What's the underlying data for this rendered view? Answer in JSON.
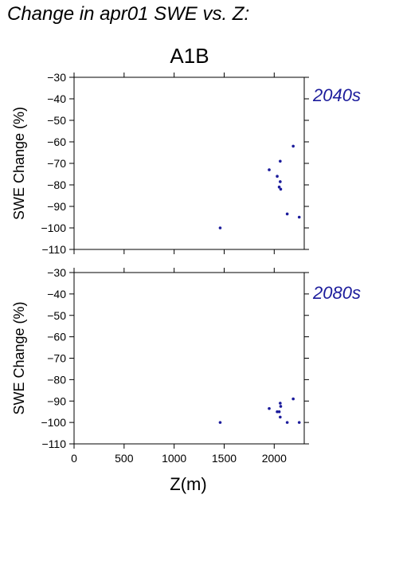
{
  "title": "Change in apr01 SWE vs. Z:",
  "scenario": "A1B",
  "colors": {
    "points": "#1c1c9c",
    "label": "#1c1c9c",
    "axis": "#000000"
  },
  "chart_data": [
    {
      "type": "scatter",
      "panel_label": "2040s",
      "xlabel": "Z(m)",
      "ylabel": "SWE Change (%)",
      "xlim": [
        0,
        2300
      ],
      "ylim": [
        -110,
        -30
      ],
      "xticks": [
        0,
        500,
        1000,
        1500,
        2000
      ],
      "yticks": [
        -110,
        -100,
        -90,
        -80,
        -70,
        -60,
        -50,
        -40,
        -30
      ],
      "x_tick_labels_shown": false,
      "grid": false,
      "points": [
        {
          "x": 1460,
          "y": -100
        },
        {
          "x": 1950,
          "y": -73
        },
        {
          "x": 2030,
          "y": -76
        },
        {
          "x": 2060,
          "y": -69
        },
        {
          "x": 2060,
          "y": -78.5
        },
        {
          "x": 2050,
          "y": -81
        },
        {
          "x": 2065,
          "y": -82
        },
        {
          "x": 2130,
          "y": -93.5
        },
        {
          "x": 2190,
          "y": -62
        },
        {
          "x": 2250,
          "y": -95
        }
      ]
    },
    {
      "type": "scatter",
      "panel_label": "2080s",
      "xlabel": "Z(m)",
      "ylabel": "SWE Change (%)",
      "xlim": [
        0,
        2300
      ],
      "ylim": [
        -110,
        -30
      ],
      "xticks": [
        0,
        500,
        1000,
        1500,
        2000
      ],
      "yticks": [
        -110,
        -100,
        -90,
        -80,
        -70,
        -60,
        -50,
        -40,
        -30
      ],
      "x_tick_labels_shown": true,
      "grid": false,
      "points": [
        {
          "x": 1460,
          "y": -100
        },
        {
          "x": 1950,
          "y": -93.5
        },
        {
          "x": 2030,
          "y": -95
        },
        {
          "x": 2050,
          "y": -95
        },
        {
          "x": 2060,
          "y": -91
        },
        {
          "x": 2065,
          "y": -92.5
        },
        {
          "x": 2060,
          "y": -97.5
        },
        {
          "x": 2130,
          "y": -100
        },
        {
          "x": 2190,
          "y": -89
        },
        {
          "x": 2250,
          "y": -100
        }
      ]
    }
  ]
}
